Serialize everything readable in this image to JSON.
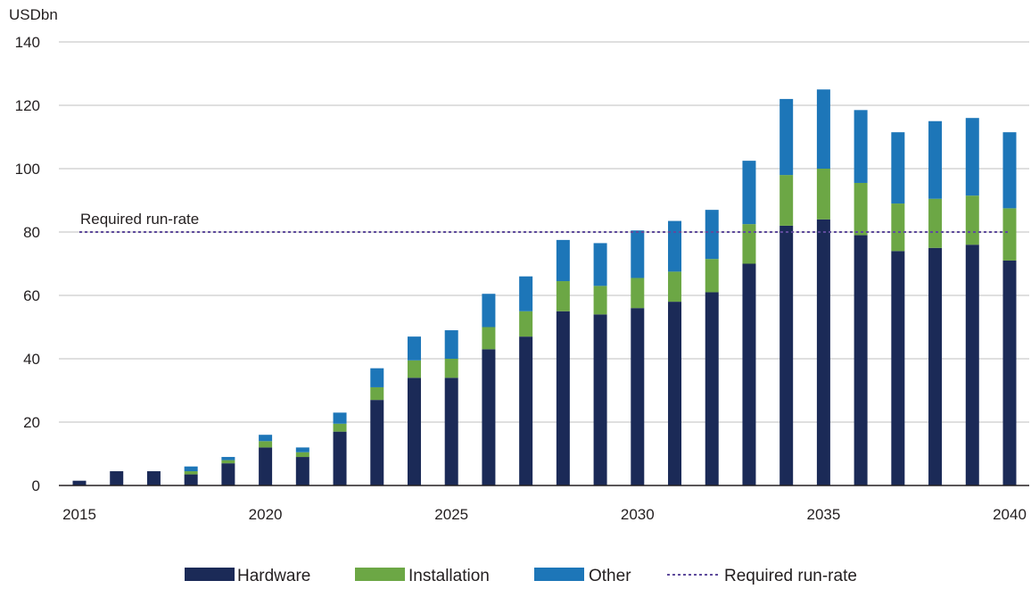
{
  "colors": {
    "hardware": "#1b2a57",
    "installation": "#6ca745",
    "other": "#1d76b8",
    "reference": "#5f4b9c",
    "grid": "#bfbfbf",
    "axis": "#231f20"
  },
  "chart_data": {
    "type": "bar",
    "stacked": true,
    "ylabel": "USDbn",
    "ylim": [
      0,
      140
    ],
    "yticks": [
      0,
      20,
      40,
      60,
      80,
      100,
      120,
      140
    ],
    "x": [
      2015,
      2016,
      2017,
      2018,
      2019,
      2020,
      2021,
      2022,
      2023,
      2024,
      2025,
      2026,
      2027,
      2028,
      2029,
      2030,
      2031,
      2032,
      2033,
      2034,
      2035,
      2036,
      2037,
      2038,
      2039,
      2040
    ],
    "xticks": [
      "2015",
      "2020",
      "2025",
      "2030",
      "2035",
      "2040"
    ],
    "series": [
      {
        "name": "Hardware",
        "color_key": "hardware",
        "values": [
          1.5,
          4.5,
          4.5,
          3.5,
          7,
          12,
          9,
          17,
          27,
          34,
          34,
          43,
          47,
          55,
          54,
          56,
          58,
          61,
          70,
          82,
          84,
          79,
          74,
          75,
          76,
          71
        ]
      },
      {
        "name": "Installation",
        "color_key": "installation",
        "values": [
          0,
          0,
          0,
          1,
          1,
          2,
          1.5,
          2.5,
          4,
          5.5,
          6,
          7,
          8,
          9.5,
          9,
          9.5,
          9.5,
          10.5,
          12.5,
          16,
          16,
          16.5,
          15,
          15.5,
          15.5,
          16.5
        ]
      },
      {
        "name": "Other",
        "color_key": "other",
        "values": [
          0,
          0,
          0,
          1.5,
          1,
          2,
          1.5,
          3.5,
          6,
          7.5,
          9,
          10.5,
          11,
          13,
          13.5,
          15,
          16,
          15.5,
          20,
          24,
          25,
          23,
          22.5,
          24.5,
          24.5,
          24
        ]
      }
    ],
    "reference_line": {
      "name": "Required run-rate",
      "value": 80,
      "label": "Required run-rate",
      "style": "dotted"
    },
    "grid": true,
    "legend": [
      "Hardware",
      "Installation",
      "Other",
      "Required run-rate"
    ],
    "legend_position": "bottom"
  }
}
